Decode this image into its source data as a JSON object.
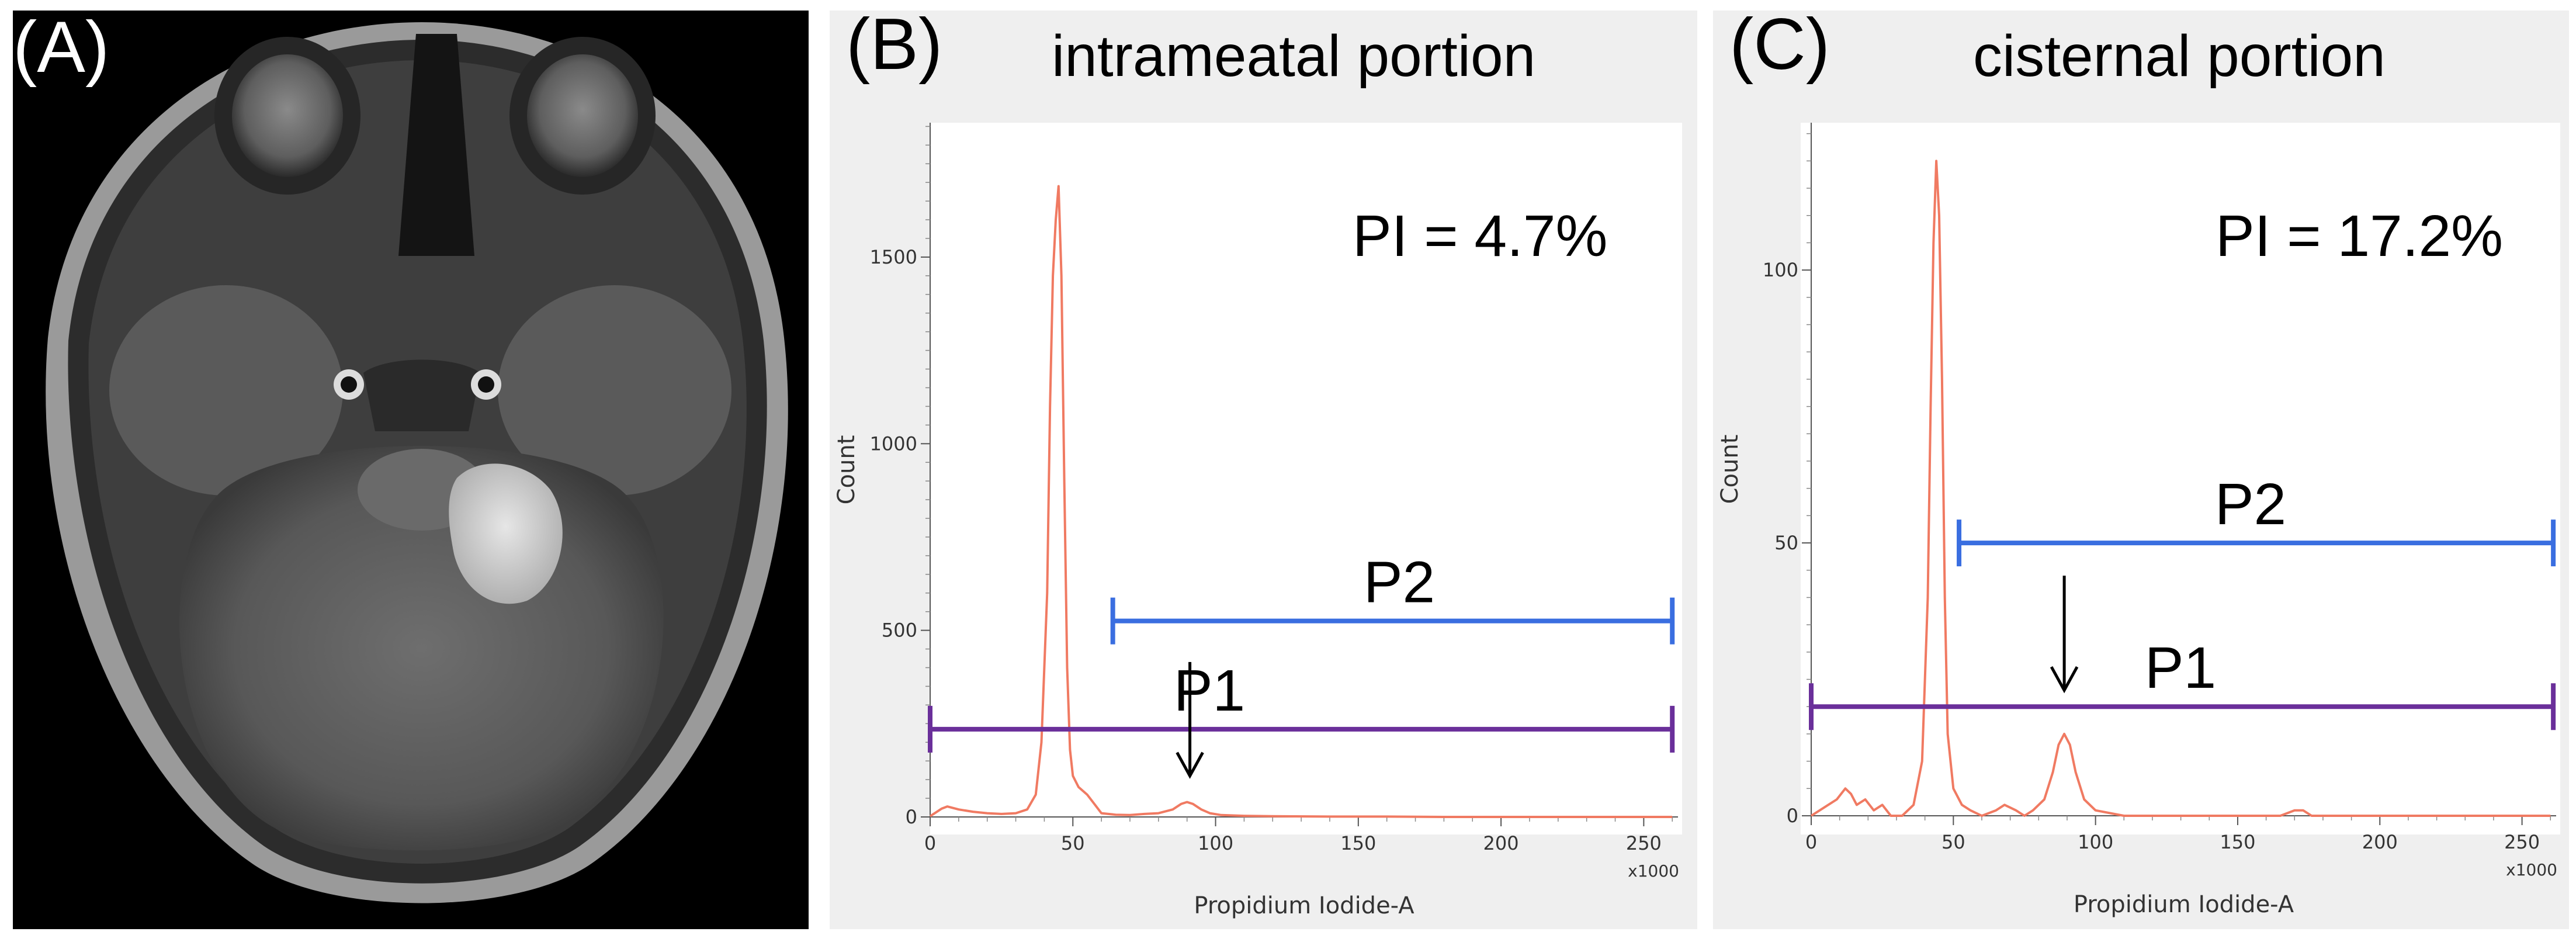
{
  "panels": {
    "a": {
      "label": "(A)",
      "image": "axial-mri-brain"
    },
    "b": {
      "label": "(B)"
    },
    "c": {
      "label": "(C)"
    }
  },
  "chart_data": [
    {
      "type": "line",
      "panel": "B",
      "title": "intrameatal portion",
      "annotation": "PI = 4.7%",
      "xlabel": "Propidium Iodide-A",
      "ylabel": "Count",
      "x_multiplier": "x1000",
      "xlim": [
        0,
        262
      ],
      "ylim": [
        0,
        1860
      ],
      "xticks": [
        0,
        50,
        100,
        150,
        200,
        250
      ],
      "xtick_labels": [
        "0",
        "50",
        "100",
        "150",
        "200",
        "250"
      ],
      "yticks": [
        0,
        500,
        1000,
        1500
      ],
      "ytick_labels": [
        "0",
        "500",
        "1000",
        "1500"
      ],
      "series": [
        {
          "name": "histogram",
          "color": "#f07a62",
          "x": [
            0,
            2,
            4,
            6,
            10,
            15,
            20,
            25,
            30,
            34,
            37,
            39,
            41,
            42,
            43,
            44,
            45,
            46,
            47,
            48,
            49,
            50,
            52,
            55,
            58,
            60,
            65,
            70,
            75,
            80,
            85,
            88,
            90,
            92,
            95,
            98,
            102,
            110,
            120,
            140,
            160,
            180,
            200,
            220,
            240,
            260
          ],
          "y": [
            2,
            12,
            22,
            28,
            20,
            14,
            10,
            8,
            10,
            20,
            60,
            200,
            600,
            1100,
            1450,
            1600,
            1690,
            1450,
            900,
            400,
            180,
            110,
            80,
            60,
            30,
            10,
            6,
            5,
            8,
            10,
            20,
            35,
            40,
            35,
            20,
            10,
            5,
            3,
            2,
            1,
            1,
            0,
            0,
            0,
            0,
            0
          ]
        }
      ],
      "gates": [
        {
          "name": "P1",
          "x_start": 0,
          "x_end": 260,
          "y": 235,
          "color": "#6a2f9a"
        },
        {
          "name": "P2",
          "x_start": 64,
          "x_end": 260,
          "y": 525,
          "color": "#3a6ee0"
        }
      ],
      "arrow": {
        "x": 91,
        "y_from": 415,
        "y_to": 110
      }
    },
    {
      "type": "line",
      "panel": "C",
      "title": "cisternal portion",
      "annotation": "PI = 17.2%",
      "xlabel": "Propidium Iodide-A",
      "ylabel": "Count",
      "x_multiplier": "x1000",
      "xlim": [
        0,
        262
      ],
      "ylim": [
        0,
        127
      ],
      "xticks": [
        0,
        50,
        100,
        150,
        200,
        250
      ],
      "xtick_labels": [
        "0",
        "50",
        "100",
        "150",
        "200",
        "250"
      ],
      "yticks": [
        0,
        50,
        100
      ],
      "ytick_labels": [
        "0",
        "50",
        "100"
      ],
      "series": [
        {
          "name": "histogram",
          "color": "#f07a62",
          "x": [
            0,
            3,
            6,
            9,
            12,
            14,
            16,
            19,
            22,
            25,
            28,
            32,
            36,
            39,
            41,
            42,
            43,
            44,
            45,
            46,
            47,
            48,
            50,
            53,
            56,
            60,
            65,
            68,
            72,
            75,
            78,
            82,
            85,
            87,
            89,
            91,
            93,
            96,
            100,
            110,
            130,
            150,
            165,
            170,
            173,
            176,
            180,
            200,
            230,
            260
          ],
          "y": [
            0,
            1,
            2,
            3,
            5,
            4,
            2,
            3,
            1,
            2,
            0,
            0,
            2,
            10,
            40,
            75,
            105,
            120,
            110,
            80,
            40,
            15,
            5,
            2,
            1,
            0,
            1,
            2,
            1,
            0,
            1,
            3,
            8,
            13,
            15,
            13,
            8,
            3,
            1,
            0,
            0,
            0,
            0,
            1,
            1,
            0,
            0,
            0,
            0,
            0
          ]
        }
      ],
      "gates": [
        {
          "name": "P1",
          "x_start": 0,
          "x_end": 261,
          "y": 20,
          "color": "#6a2f9a"
        },
        {
          "name": "P2",
          "x_start": 52,
          "x_end": 261,
          "y": 50,
          "color": "#3a6ee0"
        }
      ],
      "arrow": {
        "x": 89,
        "y_from": 44,
        "y_to": 23
      }
    }
  ]
}
